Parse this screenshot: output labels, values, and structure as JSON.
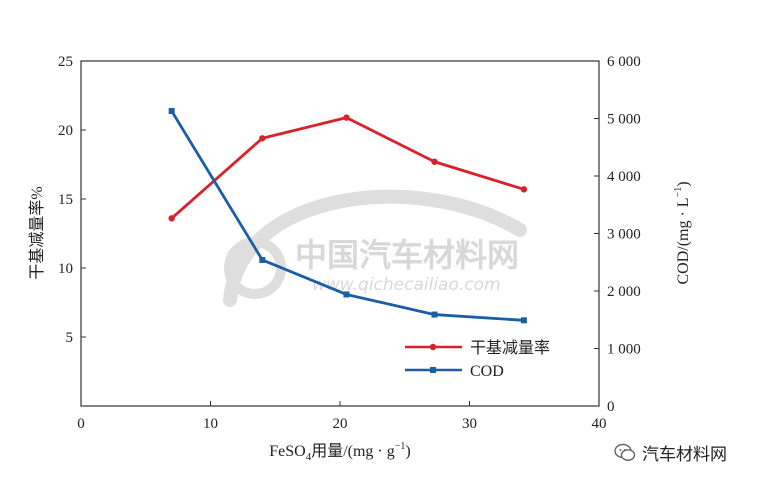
{
  "chart_data": {
    "type": "line",
    "x": [
      7,
      14,
      20.5,
      27.3,
      34.2
    ],
    "xlabel_main": "FeSO",
    "xlabel_sub": "4",
    "xlabel_rest": "用量/(mg · g",
    "xlabel_sup": "−1",
    "xlabel_end": ")",
    "xlim": [
      0,
      40
    ],
    "xticks": [
      "0",
      "10",
      "20",
      "30",
      "40"
    ],
    "ylabel_left": "干基减量率%",
    "ylim_left": [
      0,
      25
    ],
    "yticks_left": [
      "5",
      "10",
      "15",
      "20",
      "25"
    ],
    "ylabel_right_main": "COD/(mg · L",
    "ylabel_right_sup": "−1",
    "ylabel_right_end": ")",
    "ylim_right": [
      0,
      6000
    ],
    "yticks_right": [
      "0",
      "1 000",
      "2 000",
      "3 000",
      "4 000",
      "5 000",
      "6 000"
    ],
    "legend_position": "bottom-right",
    "series": [
      {
        "name": "干基减量率",
        "axis": "left",
        "color": "#d6232a",
        "marker": "circle",
        "values": [
          13.6,
          19.4,
          20.9,
          17.7,
          15.7
        ]
      },
      {
        "name": "COD",
        "axis": "right",
        "color": "#1a5ea5",
        "marker": "square",
        "values": [
          5130,
          2540,
          1940,
          1590,
          1490
        ]
      }
    ]
  },
  "watermark": {
    "cn": "中国汽车材料网",
    "url": "www.qichecailiao.com"
  },
  "footer": {
    "brand": "汽车材料网"
  }
}
